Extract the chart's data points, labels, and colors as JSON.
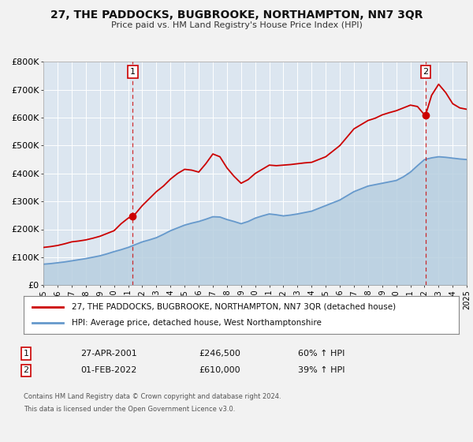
{
  "title": "27, THE PADDOCKS, BUGBROOKE, NORTHAMPTON, NN7 3QR",
  "subtitle": "Price paid vs. HM Land Registry's House Price Index (HPI)",
  "bg_color": "#f2f2f2",
  "plot_bg_color": "#dce6f0",
  "grid_color": "#ffffff",
  "legend1_label": "27, THE PADDOCKS, BUGBROOKE, NORTHAMPTON, NN7 3QR (detached house)",
  "legend2_label": "HPI: Average price, detached house, West Northamptonshire",
  "annotation1_date": "27-APR-2001",
  "annotation1_price": "£246,500",
  "annotation1_pct": "60% ↑ HPI",
  "annotation2_date": "01-FEB-2022",
  "annotation2_price": "£610,000",
  "annotation2_pct": "39% ↑ HPI",
  "footer1": "Contains HM Land Registry data © Crown copyright and database right 2024.",
  "footer2": "This data is licensed under the Open Government Licence v3.0.",
  "red_color": "#cc0000",
  "blue_color": "#6699cc",
  "blue_fill": "#b8cfe0",
  "ylim": [
    0,
    800000
  ],
  "yticks": [
    0,
    100000,
    200000,
    300000,
    400000,
    500000,
    600000,
    700000,
    800000
  ],
  "ytick_labels": [
    "£0",
    "£100K",
    "£200K",
    "£300K",
    "£400K",
    "£500K",
    "£600K",
    "£700K",
    "£800K"
  ],
  "hpi_x": [
    1995.0,
    1995.5,
    1996.0,
    1996.5,
    1997.0,
    1997.5,
    1998.0,
    1998.5,
    1999.0,
    1999.5,
    2000.0,
    2000.5,
    2001.0,
    2001.5,
    2002.0,
    2002.5,
    2003.0,
    2003.5,
    2004.0,
    2004.5,
    2005.0,
    2005.5,
    2006.0,
    2006.5,
    2007.0,
    2007.5,
    2008.0,
    2008.5,
    2009.0,
    2009.5,
    2010.0,
    2010.5,
    2011.0,
    2011.5,
    2012.0,
    2012.5,
    2013.0,
    2013.5,
    2014.0,
    2014.5,
    2015.0,
    2015.5,
    2016.0,
    2016.5,
    2017.0,
    2017.5,
    2018.0,
    2018.5,
    2019.0,
    2019.5,
    2020.0,
    2020.5,
    2021.0,
    2021.5,
    2022.0,
    2022.5,
    2023.0,
    2023.5,
    2024.0,
    2024.5,
    2025.0
  ],
  "hpi_y": [
    75000,
    77000,
    80000,
    83000,
    87000,
    91000,
    95000,
    100000,
    105000,
    112000,
    120000,
    127000,
    135000,
    145000,
    155000,
    162000,
    170000,
    182000,
    195000,
    205000,
    215000,
    222000,
    228000,
    236000,
    245000,
    244000,
    235000,
    228000,
    220000,
    228000,
    240000,
    248000,
    255000,
    252000,
    248000,
    251000,
    255000,
    260000,
    265000,
    275000,
    285000,
    295000,
    305000,
    320000,
    335000,
    345000,
    355000,
    360000,
    365000,
    370000,
    375000,
    388000,
    405000,
    428000,
    450000,
    456000,
    460000,
    458000,
    455000,
    452000,
    450000
  ],
  "price_x": [
    1995.0,
    1995.5,
    1996.0,
    1996.5,
    1997.0,
    1997.5,
    1998.0,
    1998.5,
    1999.0,
    1999.5,
    2000.0,
    2000.5,
    2001.0,
    2001.32,
    2001.5,
    2002.0,
    2002.5,
    2003.0,
    2003.5,
    2004.0,
    2004.5,
    2005.0,
    2005.5,
    2006.0,
    2006.5,
    2007.0,
    2007.5,
    2008.0,
    2008.5,
    2009.0,
    2009.5,
    2010.0,
    2010.5,
    2011.0,
    2011.5,
    2012.0,
    2012.5,
    2013.0,
    2013.5,
    2014.0,
    2014.5,
    2015.0,
    2015.5,
    2016.0,
    2016.5,
    2017.0,
    2017.5,
    2018.0,
    2018.5,
    2019.0,
    2019.5,
    2020.0,
    2020.5,
    2021.0,
    2021.5,
    2022.0,
    2022.08,
    2022.5,
    2023.0,
    2023.5,
    2024.0,
    2024.5,
    2025.0
  ],
  "price_y": [
    135000,
    138000,
    142000,
    148000,
    155000,
    158000,
    162000,
    168000,
    175000,
    185000,
    195000,
    220000,
    240000,
    246500,
    255000,
    285000,
    310000,
    335000,
    355000,
    380000,
    400000,
    415000,
    412000,
    405000,
    435000,
    470000,
    460000,
    420000,
    390000,
    365000,
    378000,
    400000,
    415000,
    430000,
    428000,
    430000,
    432000,
    435000,
    438000,
    440000,
    450000,
    460000,
    480000,
    500000,
    530000,
    560000,
    575000,
    590000,
    598000,
    610000,
    618000,
    625000,
    635000,
    645000,
    640000,
    610000,
    610000,
    680000,
    720000,
    690000,
    650000,
    635000,
    630000
  ],
  "sale1_year": 2001.32,
  "sale1_value": 246500,
  "sale2_year": 2022.08,
  "sale2_value": 610000,
  "vline1_year": 2001.32,
  "vline2_year": 2022.08,
  "xmin": 1995,
  "xmax": 2025
}
